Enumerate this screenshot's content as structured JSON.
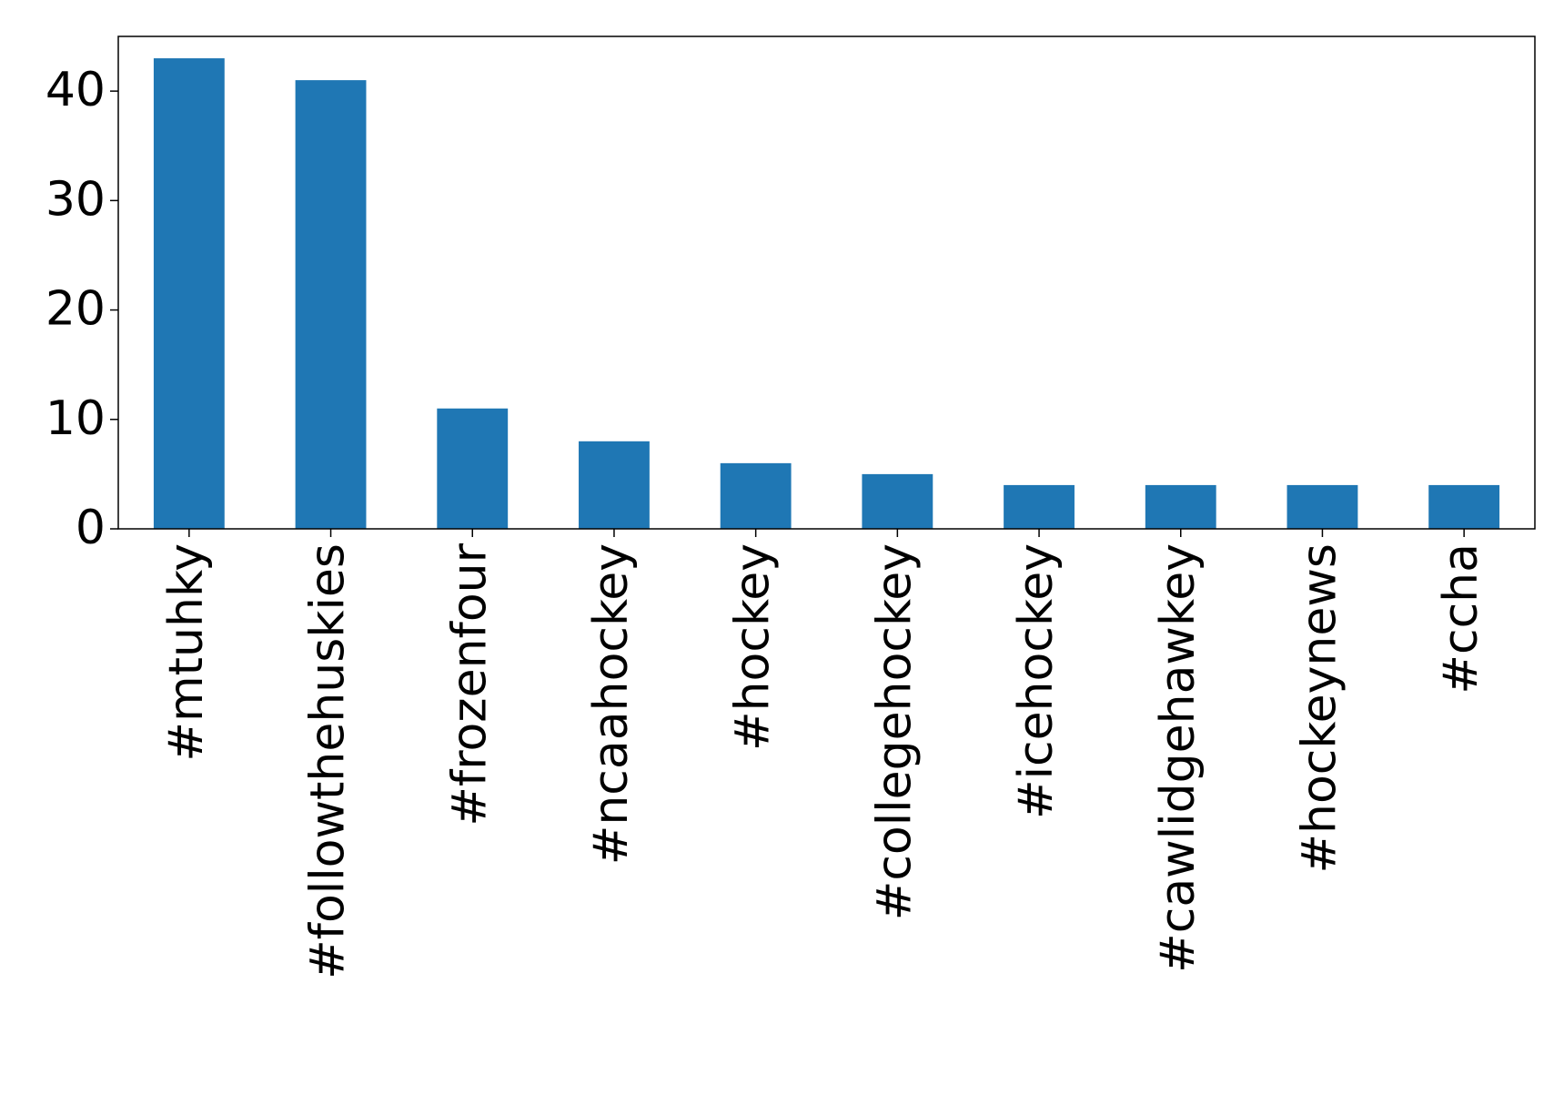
{
  "chart_data": {
    "type": "bar",
    "categories": [
      "#mtuhky",
      "#followthehuskies",
      "#frozenfour",
      "#ncaahockey",
      "#hockey",
      "#collegehockey",
      "#icehockey",
      "#cawlidgehawkey",
      "#hockeynews",
      "#ccha"
    ],
    "values": [
      43,
      41,
      11,
      8,
      6,
      5,
      4,
      4,
      4,
      4
    ],
    "color": "#1f77b4",
    "ylim": [
      0,
      45
    ],
    "yticks": [
      0,
      10,
      20,
      30,
      40
    ],
    "grid": false
  }
}
